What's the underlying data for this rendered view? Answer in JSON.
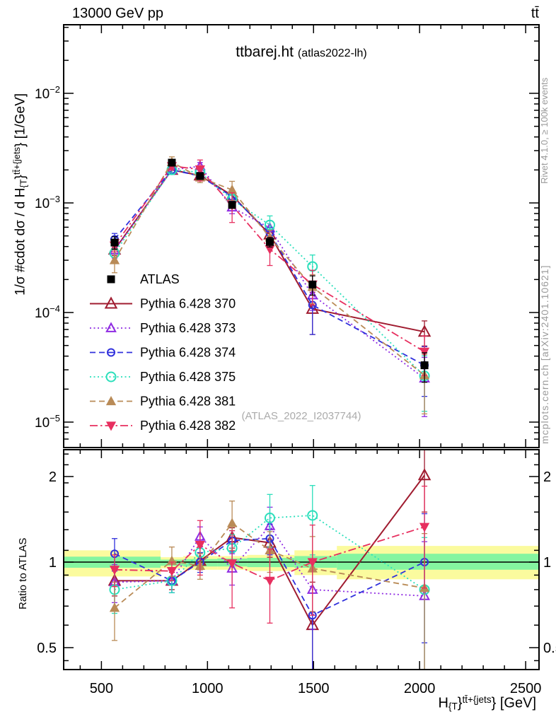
{
  "chart_data": {
    "type": "line",
    "title": "ttbarej.ht",
    "subtitle": "(atlas2022-lh)",
    "header_left": "13000 GeV pp",
    "header_right": "tt̄",
    "watermark": "(ATLAS_2022_I2037744)",
    "side_notes": {
      "top_right": "Rivet 4.1.0, ≥ 100k events",
      "bottom_right": "mcplots.cern.ch [arXiv:2401.10621]"
    },
    "x_axis": {
      "min": 322,
      "max": 2563,
      "ticks": [
        500,
        1000,
        1500,
        2000,
        2500
      ],
      "minor_step": 100,
      "label": {
        "prefix": "H",
        "sub": "{T",
        "brace": "}",
        "sup": "tt̄+{jets",
        "suffix": "} [GeV]"
      }
    },
    "y_main": {
      "scale": "log",
      "ticks_exp": [
        -2,
        -3,
        -4,
        -5
      ],
      "label": {
        "prefix": "1/σ #cdot dσ / d H",
        "sub": "{T",
        "brace": "}",
        "sup": "tt̄+{jets",
        "suffix": "} [1/GeV]"
      }
    },
    "y_ratio": {
      "scale": "log",
      "label": "Ratio to ATLAS",
      "ticks": [
        2,
        1,
        0.5
      ],
      "tick_labels": [
        "2",
        "1",
        "0.5"
      ],
      "minor_ticks": [
        2.4,
        2.2,
        1.9,
        1.7,
        1.5,
        1.3,
        1.1,
        0.9,
        0.8,
        0.7,
        0.6,
        0.45
      ]
    },
    "bin_centers": [
      562,
      832,
      965,
      1116,
      1294,
      1495,
      2023
    ],
    "atlas": {
      "label": "ATLAS",
      "color": "#000000",
      "values": [
        0.000435,
        0.00233,
        0.00176,
        0.00096,
        0.00044,
        0.00018,
        3.3e-05
      ],
      "rel_err": [
        0.13,
        0.05,
        0.05,
        0.07,
        0.1,
        0.2,
        0.3
      ]
    },
    "series": [
      {
        "label": "Pythia 6.428 370",
        "color": "#A01C30",
        "line_style": "solid",
        "marker": "triangle-open",
        "msize": 8,
        "ratio": [
          0.86,
          0.86,
          1.01,
          1.22,
          1.17,
          0.6,
          2.02
        ],
        "ratio_err": [
          0.1,
          0.06,
          0.07,
          0.1,
          0.13,
          0.25,
          0.52
        ]
      },
      {
        "label": "Pythia 6.428 373",
        "color": "#8F2BE2",
        "line_style": "dotted",
        "marker": "triangle-open",
        "msize": 6.5,
        "ratio": [
          0.85,
          0.86,
          1.23,
          0.95,
          1.34,
          0.8,
          0.76
        ],
        "ratio_err": [
          0.13,
          0.08,
          0.1,
          0.12,
          0.22,
          0.22,
          0.42
        ]
      },
      {
        "label": "Pythia 6.428 374",
        "color": "#3030DC",
        "line_style": "dashed",
        "marker": "circle-open",
        "msize": 5,
        "ratio": [
          1.07,
          0.86,
          1.0,
          1.19,
          1.21,
          0.65,
          1.0
        ],
        "ratio_err": [
          0.14,
          0.08,
          0.08,
          0.1,
          0.15,
          0.3,
          0.48
        ]
      },
      {
        "label": "Pythia 6.428 375",
        "color": "#2BDFBB",
        "line_style": "dotted",
        "marker": "circle-open",
        "msize": 6.5,
        "ratio": [
          0.8,
          0.86,
          1.08,
          1.12,
          1.43,
          1.46,
          0.8
        ],
        "ratio_err": [
          0.14,
          0.08,
          0.1,
          0.13,
          0.3,
          0.4,
          0.42
        ]
      },
      {
        "label": "Pythia 6.428 381",
        "color": "#B98B57",
        "line_style": "dashed",
        "marker": "triangle-up",
        "msize": 7.5,
        "ratio": [
          0.69,
          1.01,
          0.97,
          1.37,
          1.1,
          0.95,
          0.81
        ],
        "ratio_err": [
          0.16,
          0.12,
          0.1,
          0.27,
          0.18,
          0.28,
          0.45
        ]
      },
      {
        "label": "Pythia 6.428 382",
        "color": "#E72F5F",
        "line_style": "dashdot",
        "marker": "triangle-down",
        "msize": 7.5,
        "ratio": [
          0.94,
          0.93,
          1.15,
          0.99,
          0.86,
          1.0,
          1.33
        ],
        "ratio_err": [
          0.12,
          0.07,
          0.25,
          0.3,
          0.25,
          0.35,
          0.52
        ]
      }
    ],
    "bands": {
      "yellow": "#FBFB9E",
      "green": "#85F5A0",
      "segments": [
        {
          "x0": 322,
          "x1": 779,
          "ylo": 0.89,
          "yhi": 1.1,
          "glo": 0.955,
          "ghi": 1.045
        },
        {
          "x0": 779,
          "x1": 886,
          "ylo": 0.95,
          "yhi": 1.04,
          "glo": 0.97,
          "ghi": 1.02
        },
        {
          "x0": 886,
          "x1": 1046,
          "ylo": 0.94,
          "yhi": 1.05,
          "glo": 0.965,
          "ghi": 1.025
        },
        {
          "x0": 1046,
          "x1": 1187,
          "ylo": 0.94,
          "yhi": 1.05,
          "glo": 0.965,
          "ghi": 1.03
        },
        {
          "x0": 1187,
          "x1": 1410,
          "ylo": 0.93,
          "yhi": 1.06,
          "glo": 0.96,
          "ghi": 1.035
        },
        {
          "x0": 1410,
          "x1": 1610,
          "ylo": 0.9,
          "yhi": 1.1,
          "glo": 0.955,
          "ghi": 1.05
        },
        {
          "x0": 1610,
          "x1": 2563,
          "ylo": 0.87,
          "yhi": 1.14,
          "glo": 0.94,
          "ghi": 1.07
        }
      ]
    }
  }
}
